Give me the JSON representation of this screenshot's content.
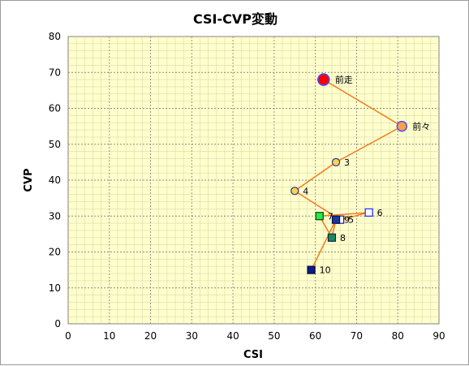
{
  "chart_data": {
    "type": "scatter",
    "title": "CSI-CVP変動",
    "xlabel": "CSI",
    "ylabel": "CVP",
    "xlim": [
      0,
      90
    ],
    "ylim": [
      0,
      80
    ],
    "xticks": [
      0,
      10,
      20,
      30,
      40,
      50,
      60,
      70,
      80,
      90
    ],
    "yticks": [
      0,
      10,
      20,
      30,
      40,
      50,
      60,
      70,
      80
    ],
    "grid": true,
    "background": "#ffffcc",
    "line_color": "#f07c1e",
    "path": [
      {
        "label": "前走",
        "x": 62,
        "y": 68,
        "marker": "circle-large",
        "fill": "#ff0000",
        "stroke": "#4a4aff"
      },
      {
        "label": "前々",
        "x": 81,
        "y": 55,
        "marker": "circle-medium",
        "fill": "#f5a04a",
        "stroke": "#4a4aff"
      },
      {
        "label": "3",
        "x": 65,
        "y": 45,
        "marker": "circle-small",
        "fill": "#ffd34a",
        "stroke": "#2a3aa0"
      },
      {
        "label": "4",
        "x": 55,
        "y": 37,
        "marker": "circle-small",
        "fill": "#ffd34a",
        "stroke": "#2a3aa0"
      },
      {
        "label": "5",
        "x": 66,
        "y": 29,
        "marker": "square",
        "fill": "#ffffff",
        "stroke": "#1a1a9a"
      },
      {
        "label": "6",
        "x": 73,
        "y": 31,
        "marker": "square",
        "fill": "#ffffff",
        "stroke": "#1a2aff"
      },
      {
        "label": "7",
        "x": 61,
        "y": 30,
        "marker": "square",
        "fill": "#22ee44",
        "stroke": "#1a3a1a"
      },
      {
        "label": "8",
        "x": 64,
        "y": 24,
        "marker": "square",
        "fill": "#1a8a5a",
        "stroke": "#0a2a4a"
      },
      {
        "label": "9",
        "x": 65,
        "y": 29,
        "marker": "square",
        "fill": "#1a3a9a",
        "stroke": "#0a0a5a"
      },
      {
        "label": "10",
        "x": 59,
        "y": 15,
        "marker": "square",
        "fill": "#0a1a8a",
        "stroke": "#0a0a3a"
      }
    ]
  }
}
